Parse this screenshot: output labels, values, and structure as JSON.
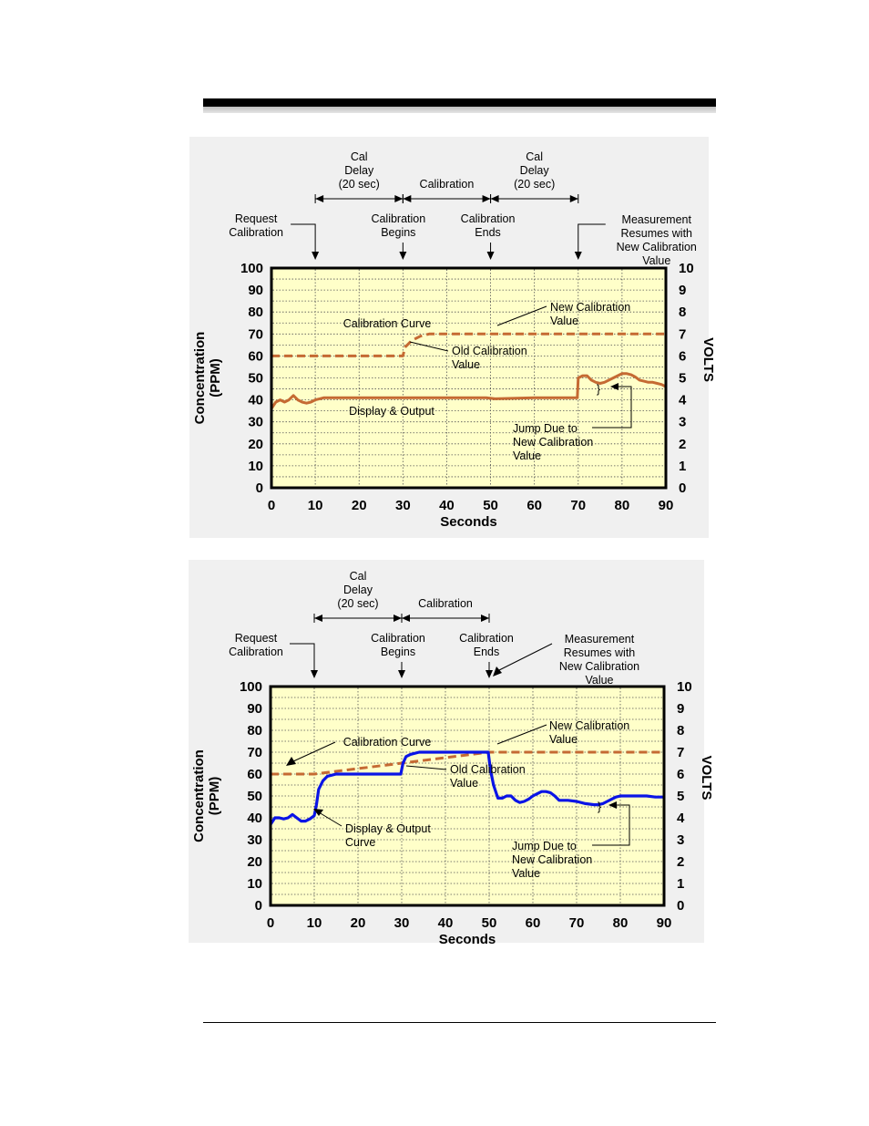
{
  "chart_data": [
    {
      "type": "line",
      "xlabel": "Seconds",
      "ylabel": "Concentration\n(PPM)",
      "y2label": "VOLTS",
      "xlim": [
        0,
        90
      ],
      "ylim": [
        0,
        100
      ],
      "y2lim": [
        0,
        10
      ],
      "x_ticks": [
        "0",
        "10",
        "20",
        "30",
        "40",
        "50",
        "60",
        "70",
        "80",
        "90"
      ],
      "y_ticks": [
        "0",
        "10",
        "20",
        "30",
        "40",
        "50",
        "60",
        "70",
        "80",
        "90",
        "100"
      ],
      "y2_ticks": [
        "0",
        "1",
        "2",
        "3",
        "4",
        "5",
        "6",
        "7",
        "8",
        "9",
        "10"
      ],
      "grid": true,
      "series": [
        {
          "name": "Calibration Curve",
          "style": "dashed",
          "color": "#c56a33",
          "x": [
            0,
            30,
            30.5,
            32,
            34,
            36,
            40,
            50,
            60,
            70,
            80,
            90
          ],
          "y": [
            60,
            60,
            64,
            67,
            69,
            70,
            70,
            70,
            70,
            70,
            70,
            70
          ]
        },
        {
          "name": "Display & Output",
          "style": "solid",
          "color": "#c56a33",
          "x": [
            0,
            1,
            2,
            3,
            4,
            5,
            6,
            7,
            8,
            9,
            10,
            11,
            12,
            15,
            20,
            30,
            40,
            49,
            51,
            60,
            69.8,
            70,
            71,
            72,
            73,
            74,
            75,
            76,
            77,
            78,
            79,
            80,
            81,
            82,
            83,
            84,
            85,
            86,
            87,
            88,
            89,
            90
          ],
          "y": [
            36,
            39,
            40,
            39,
            40,
            42,
            40,
            39,
            38.5,
            39,
            40,
            40.5,
            41,
            41,
            41,
            41,
            41,
            41,
            40.5,
            41,
            41,
            50,
            51,
            51,
            49,
            48,
            47.5,
            48,
            49,
            50,
            51,
            52,
            52,
            51.5,
            50.5,
            49,
            48.5,
            48,
            48,
            47.5,
            47,
            46
          ]
        }
      ],
      "annotations": [
        {
          "text": "Cal\nDelay\n(20 sec)",
          "span": [
            10,
            30
          ]
        },
        {
          "text": "Calibration",
          "span": [
            30,
            50
          ]
        },
        {
          "text": "Cal\nDelay\n(20 sec)",
          "span": [
            50,
            70
          ]
        },
        {
          "text": "Request\nCalibration",
          "at": 10
        },
        {
          "text": "Calibration\nBegins",
          "at": 30
        },
        {
          "text": "Calibration\nEnds",
          "at": 50
        },
        {
          "text": "Measurement\nResumes with\nNew Calibration\nValue",
          "at": 70
        },
        {
          "text": "Calibration Curve"
        },
        {
          "text": "New Calibration\nValue"
        },
        {
          "text": "Old Calibration\nValue"
        },
        {
          "text": "Display & Output"
        },
        {
          "text": "Jump Due to\nNew Calibration\nValue"
        }
      ]
    },
    {
      "type": "line",
      "xlabel": "Seconds",
      "ylabel": "Concentration\n(PPM)",
      "y2label": "VOLTS",
      "xlim": [
        0,
        90
      ],
      "ylim": [
        0,
        100
      ],
      "y2lim": [
        0,
        10
      ],
      "x_ticks": [
        "0",
        "10",
        "20",
        "30",
        "40",
        "50",
        "60",
        "70",
        "80",
        "90"
      ],
      "y_ticks": [
        "0",
        "10",
        "20",
        "30",
        "40",
        "50",
        "60",
        "70",
        "80",
        "90",
        "100"
      ],
      "y2_ticks": [
        "0",
        "1",
        "2",
        "3",
        "4",
        "5",
        "6",
        "7",
        "8",
        "9",
        "10"
      ],
      "grid": true,
      "series": [
        {
          "name": "Calibration Curve",
          "style": "dashed",
          "color": "#c56a33",
          "x": [
            0,
            10,
            50,
            50.5,
            60,
            70,
            80,
            90
          ],
          "y": [
            60,
            60,
            70,
            70,
            70,
            70,
            70,
            70
          ]
        },
        {
          "name": "Display & Output Curve",
          "style": "solid",
          "color": "#0a14e6",
          "x": [
            0,
            1,
            2,
            3,
            4,
            5,
            6,
            7,
            8,
            9,
            10,
            10.5,
            11,
            12,
            13,
            15,
            20,
            29.8,
            30.3,
            31,
            32,
            34,
            36,
            40,
            45,
            49.8,
            50.3,
            51,
            52,
            53,
            54,
            55,
            56,
            57,
            58,
            59,
            60,
            61,
            62,
            63,
            64,
            65,
            66,
            67,
            68,
            70,
            72,
            74,
            75,
            76,
            77,
            78,
            79,
            80,
            82,
            84,
            86,
            88,
            90
          ],
          "y": [
            37,
            40,
            40,
            39.5,
            40,
            41.5,
            40,
            38.5,
            38.5,
            39.5,
            41,
            46,
            53,
            57,
            59,
            60,
            60,
            60,
            65,
            68,
            69,
            70,
            70,
            70,
            70,
            70,
            62,
            55,
            49,
            49,
            50,
            50,
            48,
            47,
            47.5,
            48.5,
            50,
            51,
            52,
            52,
            51.5,
            50,
            48,
            48,
            48,
            47.5,
            46.5,
            46,
            46,
            46.5,
            47.5,
            48.5,
            49.5,
            50,
            50,
            50,
            50,
            49.5,
            49.5
          ]
        }
      ],
      "annotations": [
        {
          "text": "Cal\nDelay\n(20 sec)",
          "span": [
            10,
            30
          ]
        },
        {
          "text": "Calibration",
          "span": [
            30,
            50
          ]
        },
        {
          "text": "Request\nCalibration",
          "at": 10
        },
        {
          "text": "Calibration\nBegins",
          "at": 30
        },
        {
          "text": "Calibration\nEnds",
          "at": 50
        },
        {
          "text": "Measurement\nResumes with\nNew Calibration\nValue",
          "at": 50
        },
        {
          "text": "Calibration Curve"
        },
        {
          "text": "New Calibration\nValue"
        },
        {
          "text": "Old Calibration\nValue"
        },
        {
          "text": "Display & Output\nCurve"
        },
        {
          "text": "Jump Due to\nNew Calibration\nValue"
        }
      ]
    }
  ]
}
